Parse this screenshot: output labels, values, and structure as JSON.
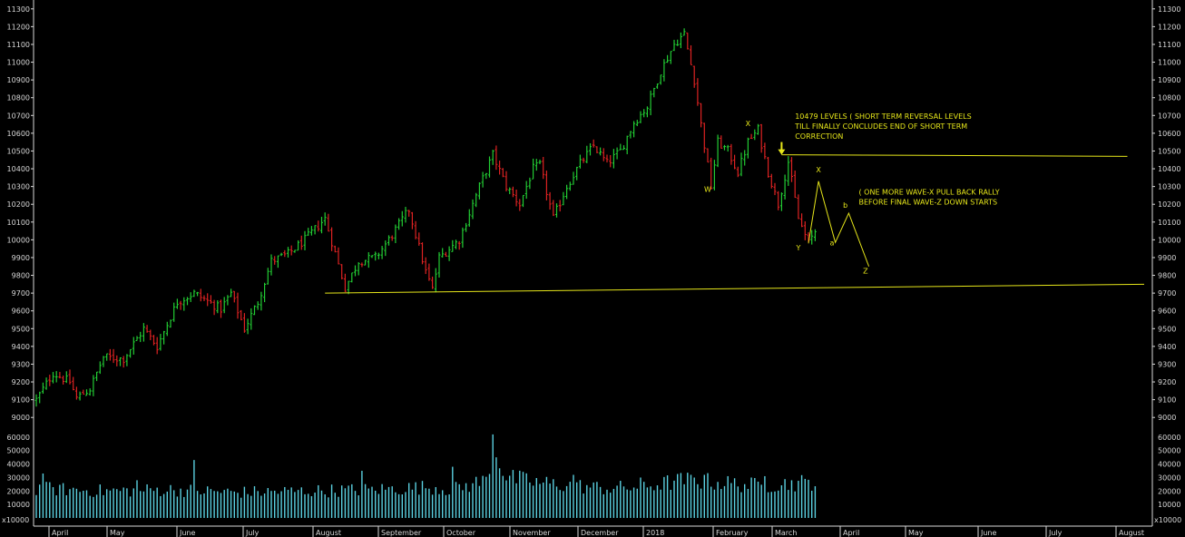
{
  "chart_data": {
    "type": "bar",
    "subtype": "ohlc-price-and-volume",
    "price_axis": {
      "ylim": [
        8950,
        11350
      ],
      "ticks": [
        9000,
        9100,
        9200,
        9300,
        9400,
        9500,
        9600,
        9700,
        9800,
        9900,
        10000,
        10100,
        10200,
        10300,
        10400,
        10500,
        10600,
        10700,
        10800,
        10900,
        11000,
        11100,
        11200,
        11300
      ]
    },
    "volume_axis": {
      "ylim": [
        0,
        68000
      ],
      "ticks": [
        10000,
        20000,
        30000,
        40000,
        50000,
        60000
      ],
      "tick_labels": [
        "10000",
        "20000",
        "30000",
        "40000",
        "50000",
        "60000"
      ],
      "multiplier_label": "x10000"
    },
    "months": [
      "April",
      "May",
      "June",
      "July",
      "August",
      "September",
      "October",
      "November",
      "December",
      "2018",
      "February",
      "March",
      "April",
      "May",
      "June",
      "July",
      "August"
    ],
    "price_anchors": [
      [
        0,
        9100
      ],
      [
        5,
        9250
      ],
      [
        10,
        9200
      ],
      [
        12,
        9110
      ],
      [
        16,
        9160
      ],
      [
        20,
        9340
      ],
      [
        26,
        9330
      ],
      [
        32,
        9500
      ],
      [
        36,
        9400
      ],
      [
        42,
        9650
      ],
      [
        47,
        9700
      ],
      [
        55,
        9610
      ],
      [
        58,
        9700
      ],
      [
        62,
        9500
      ],
      [
        66,
        9650
      ],
      [
        70,
        9880
      ],
      [
        75,
        9920
      ],
      [
        80,
        10000
      ],
      [
        86,
        10120
      ],
      [
        92,
        9730
      ],
      [
        96,
        9880
      ],
      [
        101,
        9900
      ],
      [
        105,
        10000
      ],
      [
        111,
        10170
      ],
      [
        116,
        9820
      ],
      [
        118,
        9720
      ],
      [
        120,
        9900
      ],
      [
        126,
        10000
      ],
      [
        132,
        10300
      ],
      [
        136,
        10480
      ],
      [
        140,
        10300
      ],
      [
        144,
        10200
      ],
      [
        148,
        10400
      ],
      [
        150,
        10420
      ],
      [
        154,
        10120
      ],
      [
        158,
        10300
      ],
      [
        162,
        10430
      ],
      [
        166,
        10530
      ],
      [
        170,
        10430
      ],
      [
        174,
        10500
      ],
      [
        178,
        10660
      ],
      [
        182,
        10750
      ],
      [
        186,
        10950
      ],
      [
        190,
        11100
      ],
      [
        193,
        11160
      ],
      [
        196,
        10900
      ],
      [
        198,
        10650
      ],
      [
        201,
        10300
      ],
      [
        203,
        10550
      ],
      [
        206,
        10500
      ],
      [
        209,
        10380
      ],
      [
        212,
        10550
      ],
      [
        215,
        10620
      ],
      [
        218,
        10380
      ],
      [
        221,
        10200
      ],
      [
        224,
        10440
      ],
      [
        227,
        10120
      ],
      [
        230,
        9980
      ],
      [
        232,
        10050
      ]
    ],
    "volume_anchors": [
      [
        0,
        22000
      ],
      [
        20,
        20000
      ],
      [
        40,
        21000
      ],
      [
        60,
        19000
      ],
      [
        80,
        20000
      ],
      [
        100,
        21000
      ],
      [
        118,
        23000
      ],
      [
        124,
        21000
      ],
      [
        134,
        28000
      ],
      [
        136,
        55000
      ],
      [
        140,
        30000
      ],
      [
        150,
        26000
      ],
      [
        170,
        22000
      ],
      [
        180,
        23000
      ],
      [
        193,
        28000
      ],
      [
        200,
        27000
      ],
      [
        215,
        24000
      ],
      [
        232,
        27000
      ]
    ],
    "volume_spikes": [
      {
        "bar": 136,
        "value": 62000
      },
      {
        "bar": 137,
        "value": 45000
      },
      {
        "bar": 124,
        "value": 38000
      },
      {
        "bar": 47,
        "value": 43000
      },
      {
        "bar": 2,
        "value": 33000
      },
      {
        "bar": 30,
        "value": 28000
      },
      {
        "bar": 97,
        "value": 35000
      },
      {
        "bar": 160,
        "value": 32000
      },
      {
        "bar": 180,
        "value": 30000
      },
      {
        "bar": 199,
        "value": 32000
      },
      {
        "bar": 217,
        "value": 31000
      },
      {
        "bar": 229,
        "value": 29000
      }
    ],
    "bar_count": 233,
    "support_line": [
      {
        "bar": 86,
        "value": 9700
      },
      {
        "bar": 330,
        "value": 9750
      }
    ],
    "resistance_line": [
      {
        "bar": 222,
        "value": 10479
      },
      {
        "bar": 325,
        "value": 10470
      }
    ],
    "wave_path": [
      {
        "bar": 230,
        "value": 9980
      },
      {
        "bar": 233,
        "value": 10330
      },
      {
        "bar": 238,
        "value": 9985
      },
      {
        "bar": 242,
        "value": 10150
      },
      {
        "bar": 248,
        "value": 9850
      }
    ],
    "wave_labels": [
      {
        "text": "W",
        "bar": 200,
        "value": 10270
      },
      {
        "text": "X",
        "bar": 212,
        "value": 10640
      },
      {
        "text": "Y",
        "bar": 227,
        "value": 9940
      },
      {
        "text": "X",
        "bar": 233,
        "value": 10380
      },
      {
        "text": "a",
        "bar": 237,
        "value": 9970
      },
      {
        "text": "b",
        "bar": 241,
        "value": 10180
      },
      {
        "text": "Z",
        "bar": 247,
        "value": 9810
      }
    ],
    "annotations": [
      {
        "lines": [
          "10479 LEVELS ( SHORT TERM REVERSAL LEVELS",
          "TILL FINALLY CONCLUDES END OF SHORT TERM",
          "CORRECTION"
        ],
        "bar": 226,
        "value": 10680
      },
      {
        "lines": [
          "( ONE MORE WAVE-X PULL BACK RALLY",
          "BEFORE FINAL WAVE-Z DOWN STARTS"
        ],
        "bar": 245,
        "value": 10255
      }
    ],
    "arrow": {
      "bar": 222,
      "value": 10479
    },
    "colors": {
      "up": "#22cc33",
      "down": "#dd2222",
      "volume": "#5ad0e0",
      "annotation": "#e6e61a",
      "axis": "#d8d8d8",
      "background": "#000000"
    }
  }
}
